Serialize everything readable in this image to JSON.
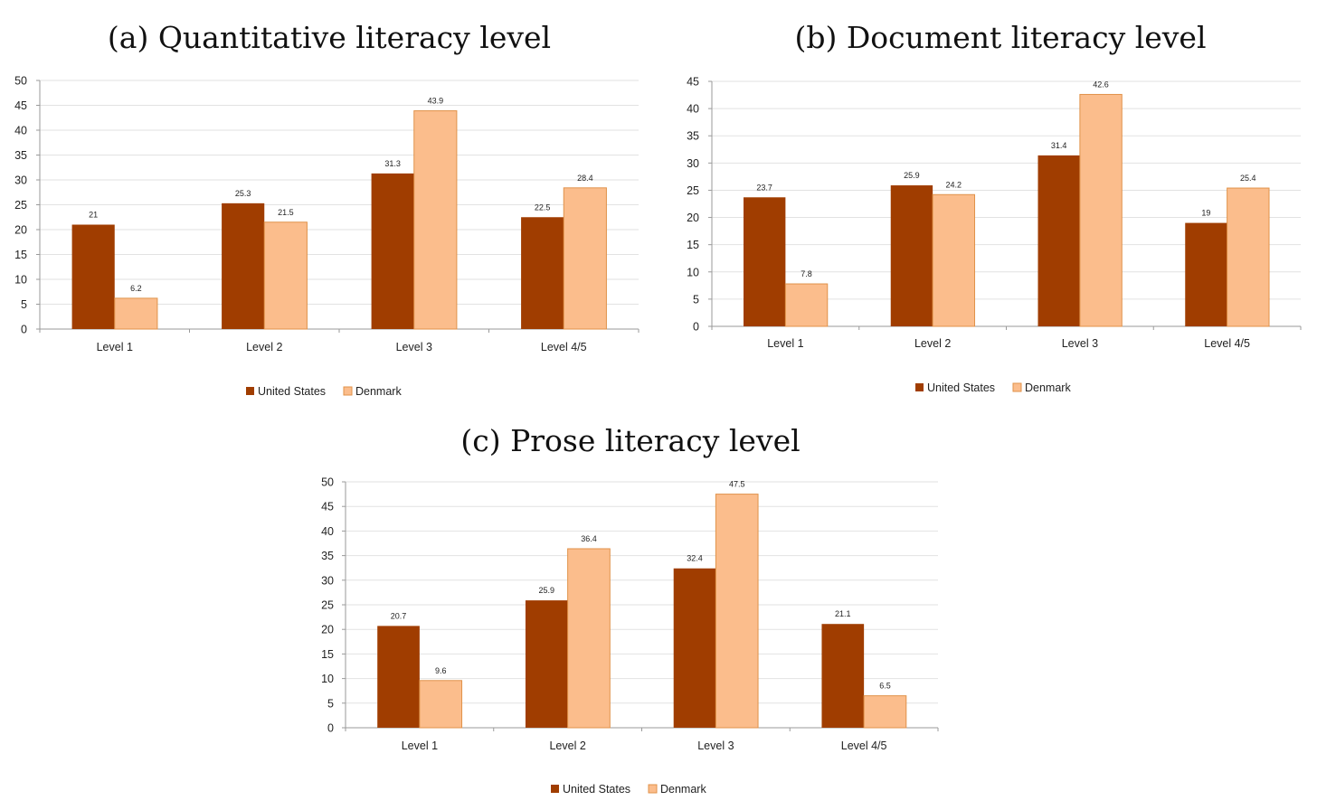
{
  "colors": {
    "us": "#a03d00",
    "dk": "#fbbd8c",
    "dk_stroke": "#e0924a",
    "grid": "#e2e2e2",
    "axis": "#9a9a9a"
  },
  "chart_data": [
    {
      "type": "bar",
      "title": "(a) Quantitative literacy level",
      "categories": [
        "Level 1",
        "Level 2",
        "Level 3",
        "Level 4/5"
      ],
      "series": [
        {
          "name": "United States",
          "values": [
            21,
            25.3,
            31.3,
            22.5
          ]
        },
        {
          "name": "Denmark",
          "values": [
            6.2,
            21.5,
            43.9,
            28.4
          ]
        }
      ],
      "ylim": [
        0,
        50
      ],
      "ystep": 5,
      "grid": true,
      "legend": "bottom",
      "data_labels": [
        "21",
        "25.3",
        "31.3",
        "22.5",
        "6.2",
        "21.5",
        "43.9",
        "28.4"
      ]
    },
    {
      "type": "bar",
      "title": "(b) Document literacy level",
      "categories": [
        "Level 1",
        "Level 2",
        "Level 3",
        "Level 4/5"
      ],
      "series": [
        {
          "name": "United States",
          "values": [
            23.7,
            25.9,
            31.4,
            19
          ]
        },
        {
          "name": "Denmark",
          "values": [
            7.8,
            24.2,
            42.6,
            25.4
          ]
        }
      ],
      "ylim": [
        0,
        45
      ],
      "ystep": 5,
      "grid": true,
      "legend": "bottom"
    },
    {
      "type": "bar",
      "title": "(c) Prose literacy level",
      "categories": [
        "Level 1",
        "Level 2",
        "Level 3",
        "Level 4/5"
      ],
      "series": [
        {
          "name": "United States",
          "values": [
            20.7,
            25.9,
            32.4,
            21.1
          ]
        },
        {
          "name": "Denmark",
          "values": [
            9.6,
            36.4,
            47.5,
            6.5
          ]
        }
      ],
      "ylim": [
        0,
        50
      ],
      "ystep": 5,
      "grid": true,
      "legend": "bottom"
    }
  ]
}
